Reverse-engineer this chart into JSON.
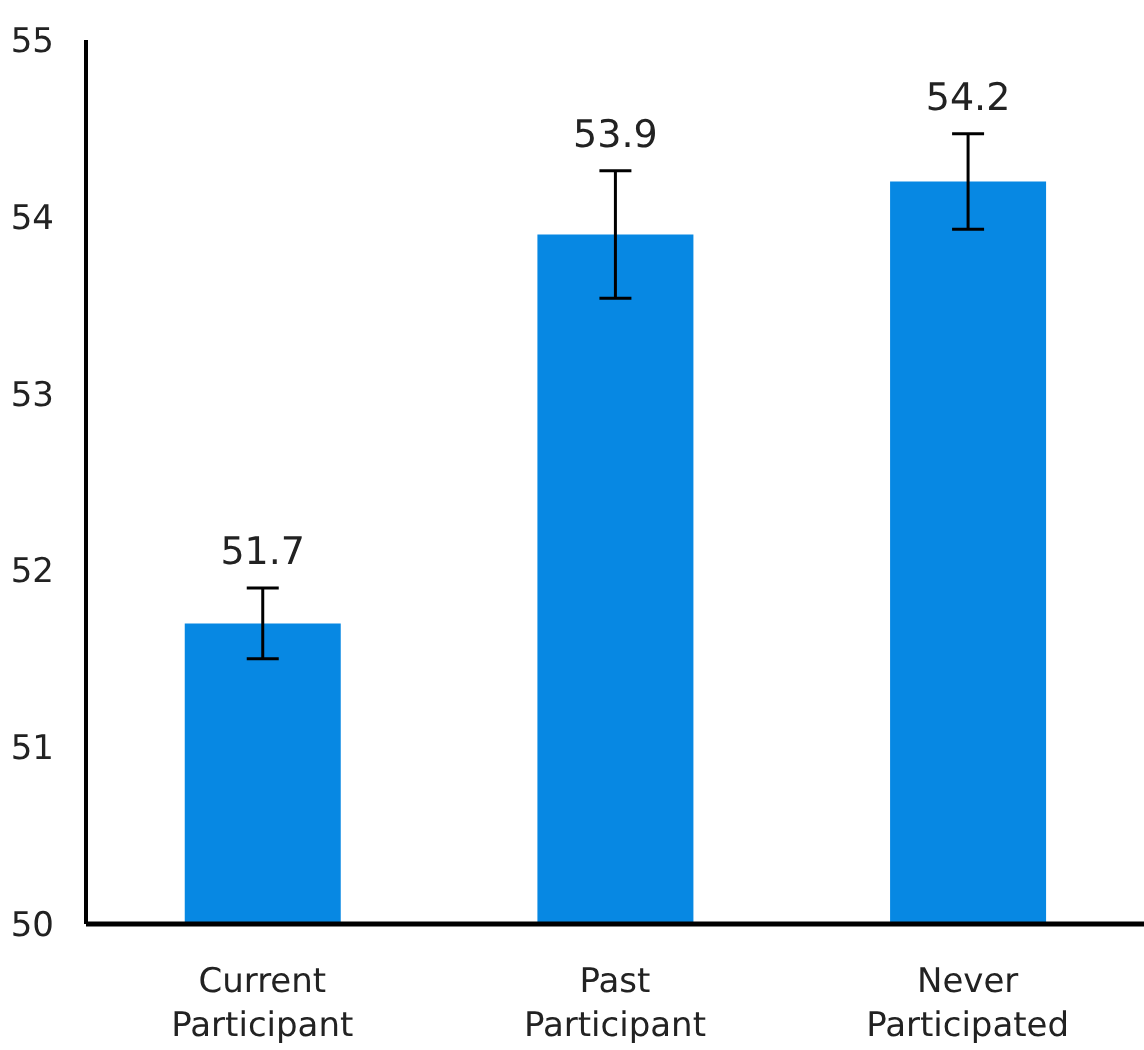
{
  "chart_data": {
    "type": "bar",
    "categories": [
      "Current Participant",
      "Past Participant",
      "Never Participated"
    ],
    "values": [
      51.7,
      53.9,
      54.2
    ],
    "errors": [
      0.2,
      0.36,
      0.27
    ],
    "color": "#0788e3",
    "ylim": [
      50,
      55
    ],
    "yticks": [
      50,
      51,
      52,
      53,
      54,
      55
    ],
    "data_labels": true,
    "grid": false,
    "legend": false
  }
}
